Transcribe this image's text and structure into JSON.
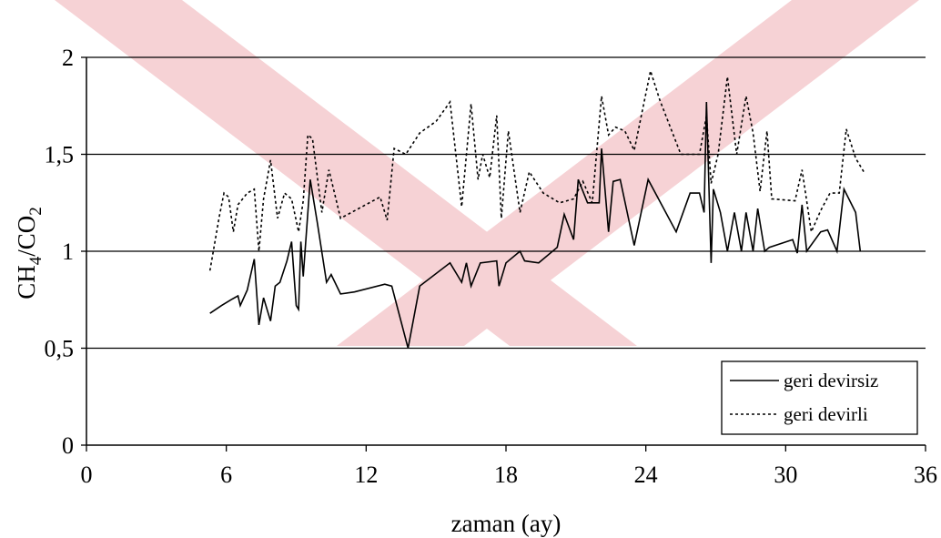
{
  "chart_data": {
    "type": "line",
    "title": "",
    "xlabel": "zaman (ay)",
    "ylabel": {
      "main": "CH",
      "sub1": "4",
      "mid": "/CO",
      "sub2": "2"
    },
    "xlim": [
      0,
      36
    ],
    "ylim": [
      0,
      2
    ],
    "x_ticks": [
      0,
      6,
      12,
      18,
      24,
      30,
      36
    ],
    "x_tick_labels": [
      "0",
      "6",
      "12",
      "18",
      "24",
      "30",
      "36"
    ],
    "y_ticks": [
      0,
      0.5,
      1,
      1.5,
      2
    ],
    "y_tick_labels": [
      "0",
      "0,5",
      "1",
      "1,5",
      "2"
    ],
    "grid": "horizontal",
    "legend_position": "bottom-right",
    "watermark_color": "#f6d2d5",
    "series": [
      {
        "name": "geri devirsiz",
        "style": "solid",
        "color": "#000000",
        "points": [
          [
            5.3,
            0.68
          ],
          [
            5.8,
            0.72
          ],
          [
            6.2,
            0.75
          ],
          [
            6.5,
            0.77
          ],
          [
            6.6,
            0.72
          ],
          [
            6.9,
            0.8
          ],
          [
            7.2,
            0.96
          ],
          [
            7.4,
            0.62
          ],
          [
            7.6,
            0.76
          ],
          [
            7.9,
            0.64
          ],
          [
            8.1,
            0.82
          ],
          [
            8.3,
            0.84
          ],
          [
            8.6,
            0.95
          ],
          [
            8.8,
            1.05
          ],
          [
            9.0,
            0.72
          ],
          [
            9.1,
            0.7
          ],
          [
            9.2,
            1.05
          ],
          [
            9.3,
            0.87
          ],
          [
            9.6,
            1.37
          ],
          [
            9.9,
            1.15
          ],
          [
            10.3,
            0.84
          ],
          [
            10.5,
            0.88
          ],
          [
            10.9,
            0.78
          ],
          [
            11.5,
            0.79
          ],
          [
            12.8,
            0.83
          ],
          [
            13.1,
            0.82
          ],
          [
            13.8,
            0.5
          ],
          [
            14.3,
            0.82
          ],
          [
            15.6,
            0.94
          ],
          [
            16.1,
            0.84
          ],
          [
            16.3,
            0.94
          ],
          [
            16.5,
            0.82
          ],
          [
            16.9,
            0.94
          ],
          [
            17.6,
            0.95
          ],
          [
            17.7,
            0.82
          ],
          [
            18.0,
            0.94
          ],
          [
            18.6,
            1.0
          ],
          [
            18.8,
            0.95
          ],
          [
            19.4,
            0.94
          ],
          [
            20.2,
            1.02
          ],
          [
            20.5,
            1.19
          ],
          [
            20.9,
            1.06
          ],
          [
            21.1,
            1.37
          ],
          [
            21.5,
            1.25
          ],
          [
            22.0,
            1.25
          ],
          [
            22.1,
            1.53
          ],
          [
            22.4,
            1.1
          ],
          [
            22.6,
            1.36
          ],
          [
            22.9,
            1.37
          ],
          [
            23.5,
            1.03
          ],
          [
            24.1,
            1.37
          ],
          [
            25.3,
            1.1
          ],
          [
            25.9,
            1.3
          ],
          [
            26.3,
            1.3
          ],
          [
            26.5,
            1.2
          ],
          [
            26.6,
            1.77
          ],
          [
            26.8,
            0.94
          ],
          [
            26.9,
            1.32
          ],
          [
            27.2,
            1.2
          ],
          [
            27.5,
            1.0
          ],
          [
            27.8,
            1.2
          ],
          [
            28.1,
            1.0
          ],
          [
            28.3,
            1.2
          ],
          [
            28.6,
            1.0
          ],
          [
            28.8,
            1.22
          ],
          [
            29.1,
            1.0
          ],
          [
            29.3,
            1.02
          ],
          [
            29.8,
            1.04
          ],
          [
            30.3,
            1.06
          ],
          [
            30.5,
            0.99
          ],
          [
            30.7,
            1.24
          ],
          [
            30.9,
            1.0
          ],
          [
            31.5,
            1.1
          ],
          [
            31.8,
            1.11
          ],
          [
            32.2,
            1.0
          ],
          [
            32.5,
            1.32
          ],
          [
            33.0,
            1.2
          ],
          [
            33.2,
            1.0
          ]
        ]
      },
      {
        "name": "geri devirli",
        "style": "dashed",
        "color": "#000000",
        "points": [
          [
            5.3,
            0.9
          ],
          [
            5.7,
            1.18
          ],
          [
            5.9,
            1.3
          ],
          [
            6.1,
            1.28
          ],
          [
            6.3,
            1.1
          ],
          [
            6.5,
            1.24
          ],
          [
            6.9,
            1.3
          ],
          [
            7.2,
            1.32
          ],
          [
            7.4,
            1.0
          ],
          [
            7.6,
            1.27
          ],
          [
            7.9,
            1.47
          ],
          [
            8.2,
            1.17
          ],
          [
            8.5,
            1.3
          ],
          [
            8.8,
            1.27
          ],
          [
            9.1,
            1.1
          ],
          [
            9.3,
            1.26
          ],
          [
            9.5,
            1.6
          ],
          [
            9.7,
            1.58
          ],
          [
            10.1,
            1.2
          ],
          [
            10.4,
            1.42
          ],
          [
            10.9,
            1.17
          ],
          [
            12.6,
            1.28
          ],
          [
            12.9,
            1.16
          ],
          [
            13.2,
            1.53
          ],
          [
            13.7,
            1.5
          ],
          [
            14.3,
            1.61
          ],
          [
            15.0,
            1.67
          ],
          [
            15.6,
            1.77
          ],
          [
            16.1,
            1.23
          ],
          [
            16.5,
            1.76
          ],
          [
            16.8,
            1.37
          ],
          [
            17.0,
            1.5
          ],
          [
            17.3,
            1.38
          ],
          [
            17.6,
            1.7
          ],
          [
            17.8,
            1.17
          ],
          [
            18.1,
            1.62
          ],
          [
            18.6,
            1.2
          ],
          [
            19.0,
            1.41
          ],
          [
            19.6,
            1.3
          ],
          [
            20.3,
            1.25
          ],
          [
            20.9,
            1.27
          ],
          [
            21.3,
            1.36
          ],
          [
            21.7,
            1.25
          ],
          [
            22.1,
            1.8
          ],
          [
            22.4,
            1.6
          ],
          [
            22.7,
            1.64
          ],
          [
            23.1,
            1.62
          ],
          [
            23.5,
            1.52
          ],
          [
            24.2,
            1.93
          ],
          [
            24.6,
            1.78
          ],
          [
            25.5,
            1.5
          ],
          [
            26.3,
            1.5
          ],
          [
            26.6,
            1.7
          ],
          [
            26.8,
            1.35
          ],
          [
            27.1,
            1.5
          ],
          [
            27.5,
            1.9
          ],
          [
            27.9,
            1.5
          ],
          [
            28.3,
            1.8
          ],
          [
            28.6,
            1.61
          ],
          [
            28.9,
            1.31
          ],
          [
            29.2,
            1.62
          ],
          [
            29.4,
            1.27
          ],
          [
            30.4,
            1.26
          ],
          [
            30.7,
            1.42
          ],
          [
            31.1,
            1.1
          ],
          [
            31.5,
            1.21
          ],
          [
            31.9,
            1.3
          ],
          [
            32.3,
            1.3
          ],
          [
            32.6,
            1.63
          ],
          [
            33.0,
            1.48
          ],
          [
            33.4,
            1.4
          ]
        ]
      }
    ]
  }
}
